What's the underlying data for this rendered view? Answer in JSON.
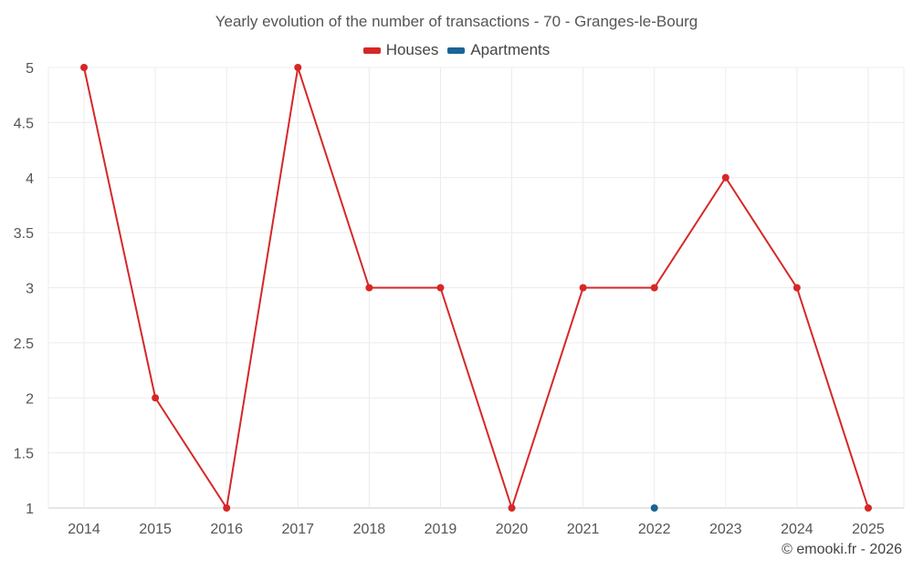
{
  "chart_data": {
    "type": "line",
    "title": "Yearly evolution of the number of transactions - 70 - Granges-le-Bourg",
    "categories": [
      "2014",
      "2015",
      "2016",
      "2017",
      "2018",
      "2019",
      "2020",
      "2021",
      "2022",
      "2023",
      "2024",
      "2025"
    ],
    "series": [
      {
        "name": "Houses",
        "color": "#d62728",
        "values": [
          5,
          2,
          1,
          5,
          3,
          3,
          1,
          3,
          3,
          4,
          3,
          1
        ]
      },
      {
        "name": "Apartments",
        "color": "#1a6496",
        "values": [
          null,
          null,
          null,
          null,
          null,
          null,
          null,
          null,
          1,
          null,
          null,
          null
        ]
      }
    ],
    "ylim": [
      1,
      5
    ],
    "yticks": [
      "1",
      "1.5",
      "2",
      "2.5",
      "3",
      "3.5",
      "4",
      "4.5",
      "5"
    ],
    "grid": true,
    "legend_position": "top-center"
  },
  "credit": "© emooki.fr - 2026"
}
